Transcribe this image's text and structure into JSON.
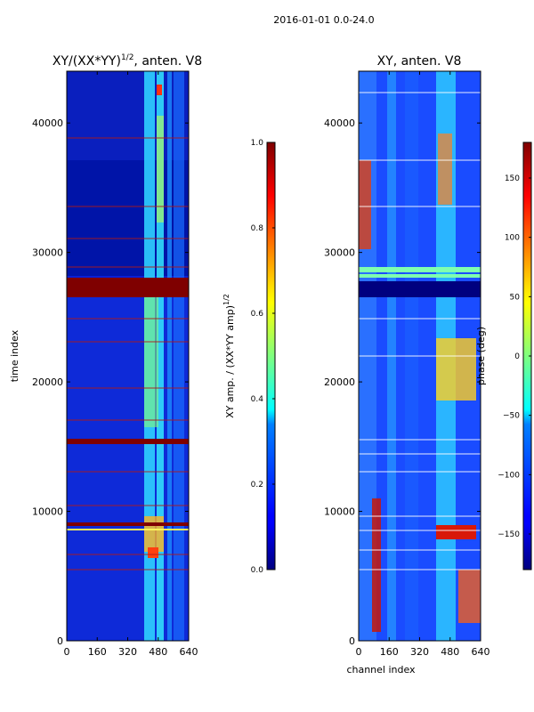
{
  "suptitle": "2016-01-01 0.0-24.0",
  "chart_data": [
    {
      "type": "heatmap",
      "title": "XY/(XX*YY)^{1/2}, anten. V8",
      "title_main": "XY/(XX*YY)",
      "title_sup": "1/2",
      "title_tail": ", anten. V8",
      "xlabel": "",
      "ylabel": "time index",
      "xlim": [
        0,
        640
      ],
      "ylim": [
        0,
        44000
      ],
      "xticks": [
        0,
        160,
        320,
        480,
        640
      ],
      "yticks": [
        0,
        10000,
        20000,
        30000,
        40000
      ],
      "colorbar": {
        "label": "XY amp. / (XX*YY amp)^{1/2}",
        "label_main": "XY amp. / (XX*YY amp)",
        "label_sup": "1/2",
        "range": [
          0.0,
          1.0
        ],
        "ticks": [
          "0.0",
          "0.2",
          "0.4",
          "0.6",
          "0.8",
          "1.0"
        ],
        "tick_values": [
          0.0,
          0.2,
          0.4,
          0.6,
          0.8,
          1.0
        ]
      }
    },
    {
      "type": "heatmap",
      "title": "XY, anten. V8",
      "xlabel": "channel index",
      "ylabel": "",
      "xlim": [
        0,
        640
      ],
      "ylim": [
        0,
        44000
      ],
      "xticks": [
        0,
        160,
        320,
        480,
        640
      ],
      "yticks": [
        0,
        10000,
        20000,
        30000,
        40000
      ],
      "colorbar": {
        "label": "phase (deg)",
        "range": [
          -180,
          180
        ],
        "ticks": [
          "−150",
          "−100",
          "−50",
          "0",
          "50",
          "100",
          "150"
        ],
        "tick_values": [
          -150,
          -100,
          -50,
          0,
          50,
          100,
          150
        ]
      }
    }
  ]
}
